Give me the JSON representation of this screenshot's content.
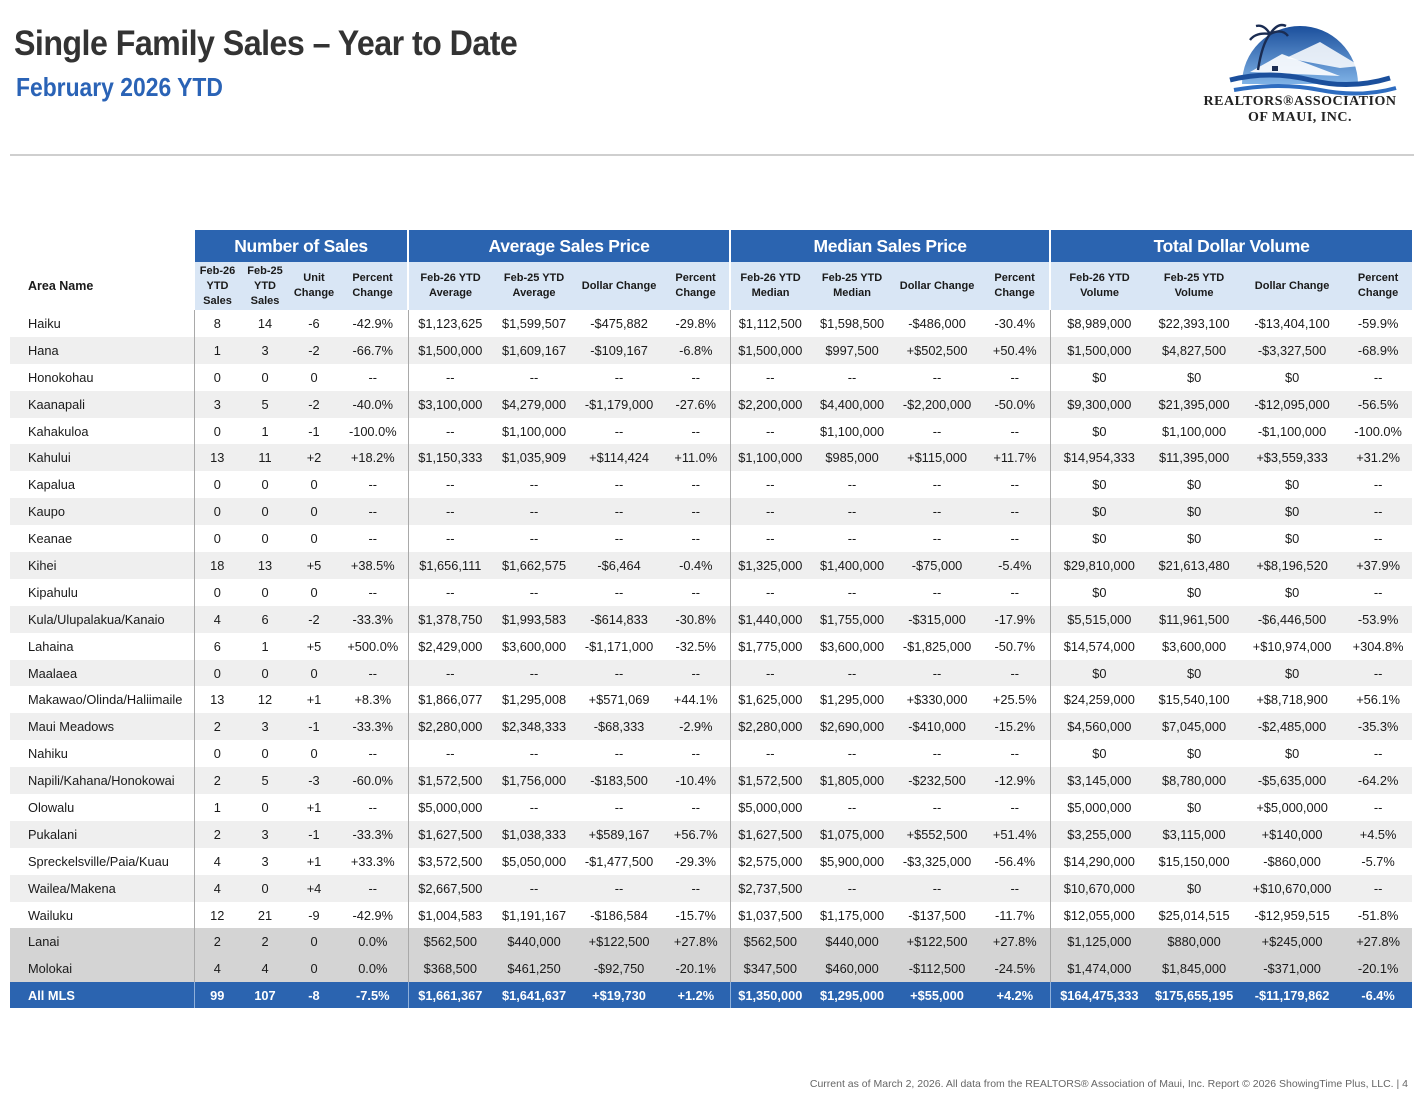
{
  "header": {
    "title": "Single Family Sales – Year to Date",
    "subtitle": "February 2026 YTD"
  },
  "logo": {
    "line1": "REALTORS®ASSOCIATION",
    "line2": "OF MAUI, INC."
  },
  "colors": {
    "accent": "#2b64b0",
    "subheader": "#d9e6f5",
    "alt_row": "#efefef",
    "island_row": "#d4d4d4"
  },
  "groups": [
    "Number of Sales",
    "Average Sales Price",
    "Median Sales Price",
    "Total Dollar Volume"
  ],
  "columns": [
    "Area Name",
    "Feb-26 YTD Sales",
    "Feb-25 YTD Sales",
    "Unit Change",
    "Percent Change",
    "Feb-26 YTD Average",
    "Feb-25 YTD Average",
    "Dollar Change",
    "Percent Change",
    "Feb-26 YTD Median",
    "Feb-25 YTD Median",
    "Dollar Change",
    "Percent Change",
    "Feb-26 YTD Volume",
    "Feb-25 YTD Volume",
    "Dollar Change",
    "Percent Change"
  ],
  "rows": [
    [
      "Haiku",
      "8",
      "14",
      "-6",
      "-42.9%",
      "$1,123,625",
      "$1,599,507",
      "-$475,882",
      "-29.8%",
      "$1,112,500",
      "$1,598,500",
      "-$486,000",
      "-30.4%",
      "$8,989,000",
      "$22,393,100",
      "-$13,404,100",
      "-59.9%"
    ],
    [
      "Hana",
      "1",
      "3",
      "-2",
      "-66.7%",
      "$1,500,000",
      "$1,609,167",
      "-$109,167",
      "-6.8%",
      "$1,500,000",
      "$997,500",
      "+$502,500",
      "+50.4%",
      "$1,500,000",
      "$4,827,500",
      "-$3,327,500",
      "-68.9%"
    ],
    [
      "Honokohau",
      "0",
      "0",
      "0",
      "--",
      "--",
      "--",
      "--",
      "--",
      "--",
      "--",
      "--",
      "--",
      "$0",
      "$0",
      "$0",
      "--"
    ],
    [
      "Kaanapali",
      "3",
      "5",
      "-2",
      "-40.0%",
      "$3,100,000",
      "$4,279,000",
      "-$1,179,000",
      "-27.6%",
      "$2,200,000",
      "$4,400,000",
      "-$2,200,000",
      "-50.0%",
      "$9,300,000",
      "$21,395,000",
      "-$12,095,000",
      "-56.5%"
    ],
    [
      "Kahakuloa",
      "0",
      "1",
      "-1",
      "-100.0%",
      "--",
      "$1,100,000",
      "--",
      "--",
      "--",
      "$1,100,000",
      "--",
      "--",
      "$0",
      "$1,100,000",
      "-$1,100,000",
      "-100.0%"
    ],
    [
      "Kahului",
      "13",
      "11",
      "+2",
      "+18.2%",
      "$1,150,333",
      "$1,035,909",
      "+$114,424",
      "+11.0%",
      "$1,100,000",
      "$985,000",
      "+$115,000",
      "+11.7%",
      "$14,954,333",
      "$11,395,000",
      "+$3,559,333",
      "+31.2%"
    ],
    [
      "Kapalua",
      "0",
      "0",
      "0",
      "--",
      "--",
      "--",
      "--",
      "--",
      "--",
      "--",
      "--",
      "--",
      "$0",
      "$0",
      "$0",
      "--"
    ],
    [
      "Kaupo",
      "0",
      "0",
      "0",
      "--",
      "--",
      "--",
      "--",
      "--",
      "--",
      "--",
      "--",
      "--",
      "$0",
      "$0",
      "$0",
      "--"
    ],
    [
      "Keanae",
      "0",
      "0",
      "0",
      "--",
      "--",
      "--",
      "--",
      "--",
      "--",
      "--",
      "--",
      "--",
      "$0",
      "$0",
      "$0",
      "--"
    ],
    [
      "Kihei",
      "18",
      "13",
      "+5",
      "+38.5%",
      "$1,656,111",
      "$1,662,575",
      "-$6,464",
      "-0.4%",
      "$1,325,000",
      "$1,400,000",
      "-$75,000",
      "-5.4%",
      "$29,810,000",
      "$21,613,480",
      "+$8,196,520",
      "+37.9%"
    ],
    [
      "Kipahulu",
      "0",
      "0",
      "0",
      "--",
      "--",
      "--",
      "--",
      "--",
      "--",
      "--",
      "--",
      "--",
      "$0",
      "$0",
      "$0",
      "--"
    ],
    [
      "Kula/Ulupalakua/Kanaio",
      "4",
      "6",
      "-2",
      "-33.3%",
      "$1,378,750",
      "$1,993,583",
      "-$614,833",
      "-30.8%",
      "$1,440,000",
      "$1,755,000",
      "-$315,000",
      "-17.9%",
      "$5,515,000",
      "$11,961,500",
      "-$6,446,500",
      "-53.9%"
    ],
    [
      "Lahaina",
      "6",
      "1",
      "+5",
      "+500.0%",
      "$2,429,000",
      "$3,600,000",
      "-$1,171,000",
      "-32.5%",
      "$1,775,000",
      "$3,600,000",
      "-$1,825,000",
      "-50.7%",
      "$14,574,000",
      "$3,600,000",
      "+$10,974,000",
      "+304.8%"
    ],
    [
      "Maalaea",
      "0",
      "0",
      "0",
      "--",
      "--",
      "--",
      "--",
      "--",
      "--",
      "--",
      "--",
      "--",
      "$0",
      "$0",
      "$0",
      "--"
    ],
    [
      "Makawao/Olinda/Haliimaile",
      "13",
      "12",
      "+1",
      "+8.3%",
      "$1,866,077",
      "$1,295,008",
      "+$571,069",
      "+44.1%",
      "$1,625,000",
      "$1,295,000",
      "+$330,000",
      "+25.5%",
      "$24,259,000",
      "$15,540,100",
      "+$8,718,900",
      "+56.1%"
    ],
    [
      "Maui Meadows",
      "2",
      "3",
      "-1",
      "-33.3%",
      "$2,280,000",
      "$2,348,333",
      "-$68,333",
      "-2.9%",
      "$2,280,000",
      "$2,690,000",
      "-$410,000",
      "-15.2%",
      "$4,560,000",
      "$7,045,000",
      "-$2,485,000",
      "-35.3%"
    ],
    [
      "Nahiku",
      "0",
      "0",
      "0",
      "--",
      "--",
      "--",
      "--",
      "--",
      "--",
      "--",
      "--",
      "--",
      "$0",
      "$0",
      "$0",
      "--"
    ],
    [
      "Napili/Kahana/Honokowai",
      "2",
      "5",
      "-3",
      "-60.0%",
      "$1,572,500",
      "$1,756,000",
      "-$183,500",
      "-10.4%",
      "$1,572,500",
      "$1,805,000",
      "-$232,500",
      "-12.9%",
      "$3,145,000",
      "$8,780,000",
      "-$5,635,000",
      "-64.2%"
    ],
    [
      "Olowalu",
      "1",
      "0",
      "+1",
      "--",
      "$5,000,000",
      "--",
      "--",
      "--",
      "$5,000,000",
      "--",
      "--",
      "--",
      "$5,000,000",
      "$0",
      "+$5,000,000",
      "--"
    ],
    [
      "Pukalani",
      "2",
      "3",
      "-1",
      "-33.3%",
      "$1,627,500",
      "$1,038,333",
      "+$589,167",
      "+56.7%",
      "$1,627,500",
      "$1,075,000",
      "+$552,500",
      "+51.4%",
      "$3,255,000",
      "$3,115,000",
      "+$140,000",
      "+4.5%"
    ],
    [
      "Spreckelsville/Paia/Kuau",
      "4",
      "3",
      "+1",
      "+33.3%",
      "$3,572,500",
      "$5,050,000",
      "-$1,477,500",
      "-29.3%",
      "$2,575,000",
      "$5,900,000",
      "-$3,325,000",
      "-56.4%",
      "$14,290,000",
      "$15,150,000",
      "-$860,000",
      "-5.7%"
    ],
    [
      "Wailea/Makena",
      "4",
      "0",
      "+4",
      "--",
      "$2,667,500",
      "--",
      "--",
      "--",
      "$2,737,500",
      "--",
      "--",
      "--",
      "$10,670,000",
      "$0",
      "+$10,670,000",
      "--"
    ],
    [
      "Wailuku",
      "12",
      "21",
      "-9",
      "-42.9%",
      "$1,004,583",
      "$1,191,167",
      "-$186,584",
      "-15.7%",
      "$1,037,500",
      "$1,175,000",
      "-$137,500",
      "-11.7%",
      "$12,055,000",
      "$25,014,515",
      "-$12,959,515",
      "-51.8%"
    ]
  ],
  "island_rows": [
    [
      "Lanai",
      "2",
      "2",
      "0",
      "0.0%",
      "$562,500",
      "$440,000",
      "+$122,500",
      "+27.8%",
      "$562,500",
      "$440,000",
      "+$122,500",
      "+27.8%",
      "$1,125,000",
      "$880,000",
      "+$245,000",
      "+27.8%"
    ],
    [
      "Molokai",
      "4",
      "4",
      "0",
      "0.0%",
      "$368,500",
      "$461,250",
      "-$92,750",
      "-20.1%",
      "$347,500",
      "$460,000",
      "-$112,500",
      "-24.5%",
      "$1,474,000",
      "$1,845,000",
      "-$371,000",
      "-20.1%"
    ]
  ],
  "total_row": [
    "All MLS",
    "99",
    "107",
    "-8",
    "-7.5%",
    "$1,661,367",
    "$1,641,637",
    "+$19,730",
    "+1.2%",
    "$1,350,000",
    "$1,295,000",
    "+$55,000",
    "+4.2%",
    "$164,475,333",
    "$175,655,195",
    "-$11,179,862",
    "-6.4%"
  ],
  "footer": "Current as of March 2, 2026. All data from the REALTORS® Association of Maui, Inc. Report © 2026 ShowingTime Plus, LLC.  |  4"
}
